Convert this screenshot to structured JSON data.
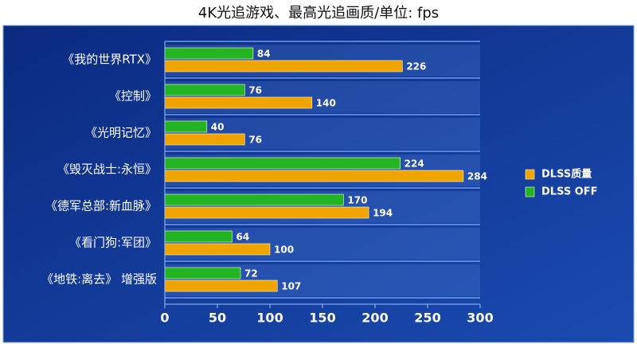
{
  "chart_data": {
    "type": "hbar",
    "title": "4K光追游戏、最高光追画质/单位: fps",
    "categories": [
      "《我的世界RTX》",
      "《控制》",
      "《光明记忆》",
      "《毁灭战士:永恒》",
      "《德军总部:新血脉》",
      "《看门狗:军团》",
      "《地铁:离去》 增强版"
    ],
    "series": [
      {
        "name": "DLSS OFF",
        "color": "#22b422",
        "values": [
          84,
          76,
          40,
          224,
          170,
          64,
          72
        ]
      },
      {
        "name": "DLSS质量",
        "color": "#f0a400",
        "values": [
          226,
          140,
          76,
          284,
          194,
          100,
          107
        ]
      }
    ],
    "xlim": [
      0,
      300
    ],
    "xticks": [
      0,
      50,
      100,
      150,
      200,
      250,
      300
    ],
    "legend": "right",
    "legend_order": [
      1,
      0
    ]
  }
}
